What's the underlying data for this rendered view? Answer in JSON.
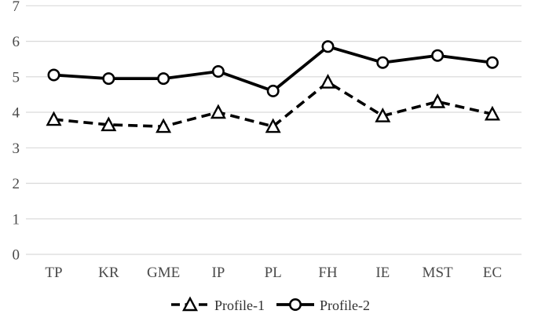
{
  "chart_data": {
    "type": "line",
    "title": "",
    "xlabel": "",
    "ylabel": "",
    "categories": [
      "TP",
      "KR",
      "GME",
      "IP",
      "PL",
      "FH",
      "IE",
      "MST",
      "EC"
    ],
    "series": [
      {
        "name": "Profile-1",
        "line_style": "dashed",
        "marker": "triangle",
        "color": "#000000",
        "values": [
          3.8,
          3.65,
          3.6,
          4.0,
          3.6,
          4.85,
          3.9,
          4.3,
          3.95
        ]
      },
      {
        "name": "Profile-2",
        "line_style": "solid",
        "marker": "circle",
        "color": "#000000",
        "values": [
          5.05,
          4.95,
          4.95,
          5.15,
          4.6,
          5.85,
          5.4,
          5.6,
          5.4
        ]
      }
    ],
    "ylim": [
      0,
      7
    ],
    "yticks": [
      "0",
      "1",
      "2",
      "3",
      "4",
      "5",
      "6",
      "7"
    ],
    "grid": true,
    "gridline_orientation": "horizontal",
    "legend_position": "bottom-center",
    "colors": {
      "background": "#ffffff",
      "gridline": "#d9d9d9",
      "axis_text": "#4a4a4a",
      "legend_text": "#303030",
      "marker_fill": "#ffffff",
      "line": "#000000"
    }
  }
}
